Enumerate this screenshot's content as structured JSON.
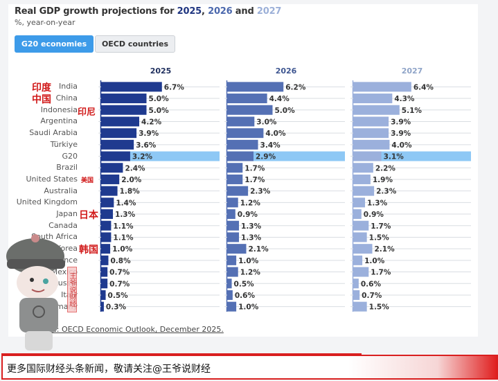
{
  "title": {
    "prefix": "Real GDP growth projections for ",
    "year1": "2025",
    "sep1": ", ",
    "year2": "2026",
    "sep2": " and ",
    "year3": "2027"
  },
  "subtitle": "%, year-on-year",
  "tabs": [
    {
      "label": "G20 economies",
      "active": true
    },
    {
      "label": "OECD countries",
      "active": false
    }
  ],
  "source": "Source: OECD Economic Outlook, December 2025.",
  "annotations": {
    "India": "印度",
    "China": "中国",
    "Indonesia": "印尼",
    "United States": "美国",
    "Japan": "日本",
    "Korea": "韩国"
  },
  "watermark_stamp": "王爷说财经",
  "banner": {
    "text": "更多国际财经头条新闻，敬请关注@王爷说财经"
  },
  "colors": {
    "y2025": "#1f3a8f",
    "y2026": "#5470b4",
    "y2027": "#9bb0dc",
    "highlight": "#8ec8f5",
    "tab_active": "#3d9be9"
  },
  "chart_data": {
    "type": "bar",
    "orientation": "horizontal",
    "title": "Real GDP growth projections for 2025, 2026 and 2027",
    "subtitle": "%, year-on-year",
    "categories": [
      "India",
      "China",
      "Indonesia",
      "Argentina",
      "Saudi Arabia",
      "Türkiye",
      "G20",
      "Brazil",
      "United States",
      "Australia",
      "United Kingdom",
      "Japan",
      "Canada",
      "South Africa",
      "Korea",
      "France",
      "Mexico",
      "Russia",
      "Italy",
      "Germany"
    ],
    "highlight_category": "G20",
    "series": [
      {
        "name": "2025",
        "values": [
          6.7,
          5.0,
          5.0,
          4.2,
          3.9,
          3.6,
          3.2,
          2.4,
          2.0,
          1.8,
          1.4,
          1.3,
          1.1,
          1.1,
          1.0,
          0.8,
          0.7,
          0.7,
          0.5,
          0.3
        ]
      },
      {
        "name": "2026",
        "values": [
          6.2,
          4.4,
          5.0,
          3.0,
          4.0,
          3.4,
          2.9,
          1.7,
          1.7,
          2.3,
          1.2,
          0.9,
          1.3,
          1.3,
          2.1,
          1.0,
          1.2,
          0.5,
          0.6,
          1.0
        ]
      },
      {
        "name": "2027",
        "values": [
          6.4,
          4.3,
          5.1,
          3.9,
          3.9,
          4.0,
          3.1,
          2.2,
          1.9,
          2.3,
          1.3,
          0.9,
          1.7,
          1.5,
          2.1,
          1.0,
          1.7,
          0.6,
          0.7,
          1.5
        ]
      }
    ],
    "value_suffix": "%",
    "xlabel": "",
    "ylabel": "",
    "xlim": [
      0,
      13
    ],
    "grid": true,
    "legend": "none"
  }
}
